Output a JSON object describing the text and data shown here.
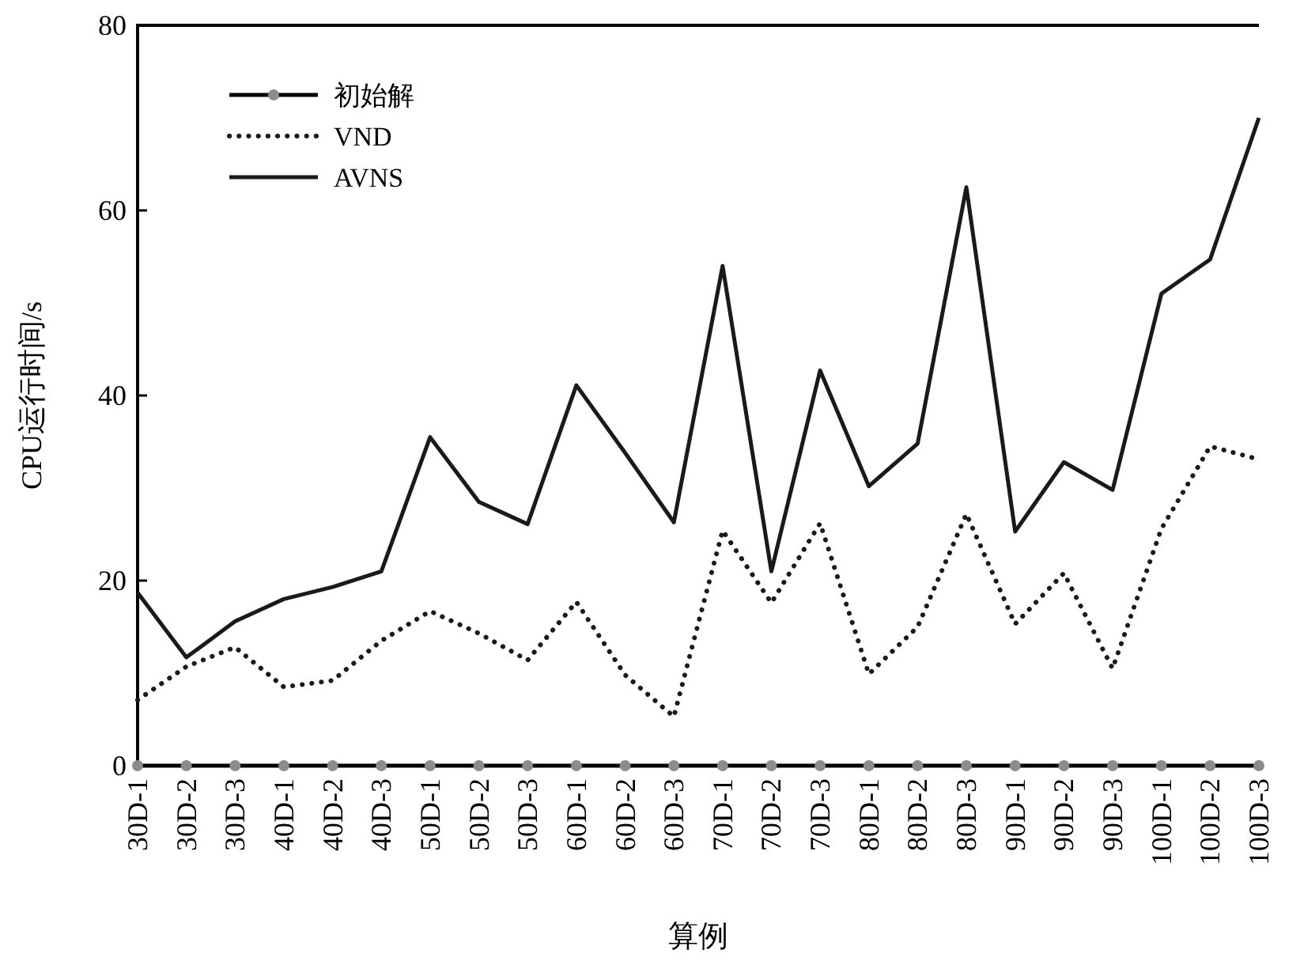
{
  "chart_data": {
    "type": "line",
    "xlabel": "算例",
    "ylabel": "CPU运行时间/s",
    "categories": [
      "30D-1",
      "30D-2",
      "30D-3",
      "40D-1",
      "40D-2",
      "40D-3",
      "50D-1",
      "50D-2",
      "50D-3",
      "60D-1",
      "60D-2",
      "60D-3",
      "70D-1",
      "70D-2",
      "70D-3",
      "80D-1",
      "80D-2",
      "80D-3",
      "90D-1",
      "90D-2",
      "90D-3",
      "100D-1",
      "100D-2",
      "100D-3"
    ],
    "series": [
      {
        "name": "初始解",
        "color": "#8c8c8c",
        "marker": "circle",
        "line_style": "solid",
        "values": [
          0,
          0,
          0,
          0,
          0,
          0,
          0,
          0,
          0,
          0,
          0,
          0,
          0,
          0,
          0,
          0,
          0,
          0,
          0,
          0,
          0,
          0,
          0,
          0
        ]
      },
      {
        "name": "VND",
        "color": "#1a1a1a",
        "marker": "none",
        "line_style": "dotted",
        "values": [
          7.1,
          10.7,
          12.8,
          8.5,
          9.2,
          13.5,
          16.7,
          14.3,
          11.4,
          17.7,
          9.8,
          5.3,
          25.4,
          17.6,
          26.2,
          9.9,
          15,
          27.2,
          15.3,
          20.8,
          10.5,
          25.6,
          34.5,
          33.1
        ]
      },
      {
        "name": "AVNS",
        "color": "#1a1a1a",
        "marker": "none",
        "line_style": "solid",
        "values": [
          18.7,
          11.7,
          15.6,
          18,
          19.3,
          21,
          35.5,
          28.5,
          26.1,
          41.1,
          33.8,
          26.3,
          54,
          21,
          42.7,
          30.2,
          34.8,
          62.5,
          25.3,
          32.8,
          29.8,
          51,
          54.7,
          70
        ]
      }
    ],
    "ylim": [
      0,
      80
    ],
    "yticks": [
      0,
      20,
      40,
      60,
      80
    ],
    "grid": false,
    "legend": "top left"
  }
}
